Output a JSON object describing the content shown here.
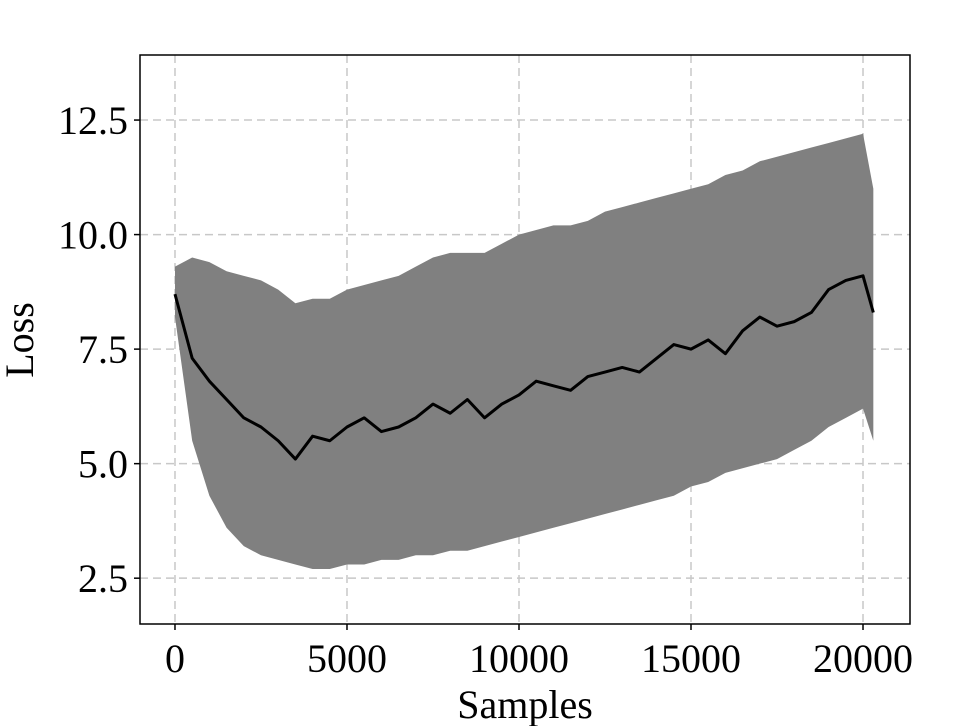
{
  "chart_data": {
    "type": "line",
    "x_label": "Samples",
    "y_label": "Loss",
    "x": [
      0,
      500,
      1000,
      1500,
      2000,
      2500,
      3000,
      3500,
      4000,
      4500,
      5000,
      5500,
      6000,
      6500,
      7000,
      7500,
      8000,
      8500,
      9000,
      9500,
      10000,
      10500,
      11000,
      11500,
      12000,
      12500,
      13000,
      13500,
      14000,
      14500,
      15000,
      15500,
      16000,
      16500,
      17000,
      17500,
      18000,
      18500,
      19000,
      19500,
      20000,
      20300
    ],
    "series": [
      {
        "color": "#000000",
        "values": [
          8.7,
          7.3,
          6.8,
          6.4,
          6.0,
          5.8,
          5.5,
          5.1,
          5.6,
          5.5,
          5.8,
          6.0,
          5.7,
          5.8,
          6.0,
          6.3,
          6.1,
          6.4,
          6.0,
          6.3,
          6.5,
          6.8,
          6.7,
          6.6,
          6.9,
          7.0,
          7.1,
          7.0,
          7.3,
          7.6,
          7.5,
          7.7,
          7.4,
          7.9,
          8.2,
          8.0,
          8.1,
          8.3,
          8.8,
          9.0,
          9.1,
          8.3
        ]
      }
    ],
    "band": {
      "color": "#808080",
      "lower": [
        8.2,
        5.5,
        4.3,
        3.6,
        3.2,
        3.0,
        2.9,
        2.8,
        2.7,
        2.7,
        2.8,
        2.8,
        2.9,
        2.9,
        3.0,
        3.0,
        3.1,
        3.1,
        3.2,
        3.3,
        3.4,
        3.5,
        3.6,
        3.7,
        3.8,
        3.9,
        4.0,
        4.1,
        4.2,
        4.3,
        4.5,
        4.6,
        4.8,
        4.9,
        5.0,
        5.1,
        5.3,
        5.5,
        5.8,
        6.0,
        6.2,
        5.5
      ],
      "upper": [
        9.3,
        9.5,
        9.4,
        9.2,
        9.1,
        9.0,
        8.8,
        8.5,
        8.6,
        8.6,
        8.8,
        8.9,
        9.0,
        9.1,
        9.3,
        9.5,
        9.6,
        9.6,
        9.6,
        9.8,
        10.0,
        10.1,
        10.2,
        10.2,
        10.3,
        10.5,
        10.6,
        10.7,
        10.8,
        10.9,
        11.0,
        11.1,
        11.3,
        11.4,
        11.6,
        11.7,
        11.8,
        11.9,
        12.0,
        12.1,
        12.2,
        11.0
      ]
    },
    "xlim": [
      -1017,
      21366
    ],
    "ylim": [
      1.5,
      13.92
    ],
    "xticks": [
      0,
      5000,
      10000,
      15000,
      20000
    ],
    "yticks": [
      2.5,
      {
        "value": 5,
        "label": "5.0"
      },
      7.5,
      {
        "value": 10,
        "label": "10.0"
      },
      12.5
    ],
    "grid": true
  }
}
